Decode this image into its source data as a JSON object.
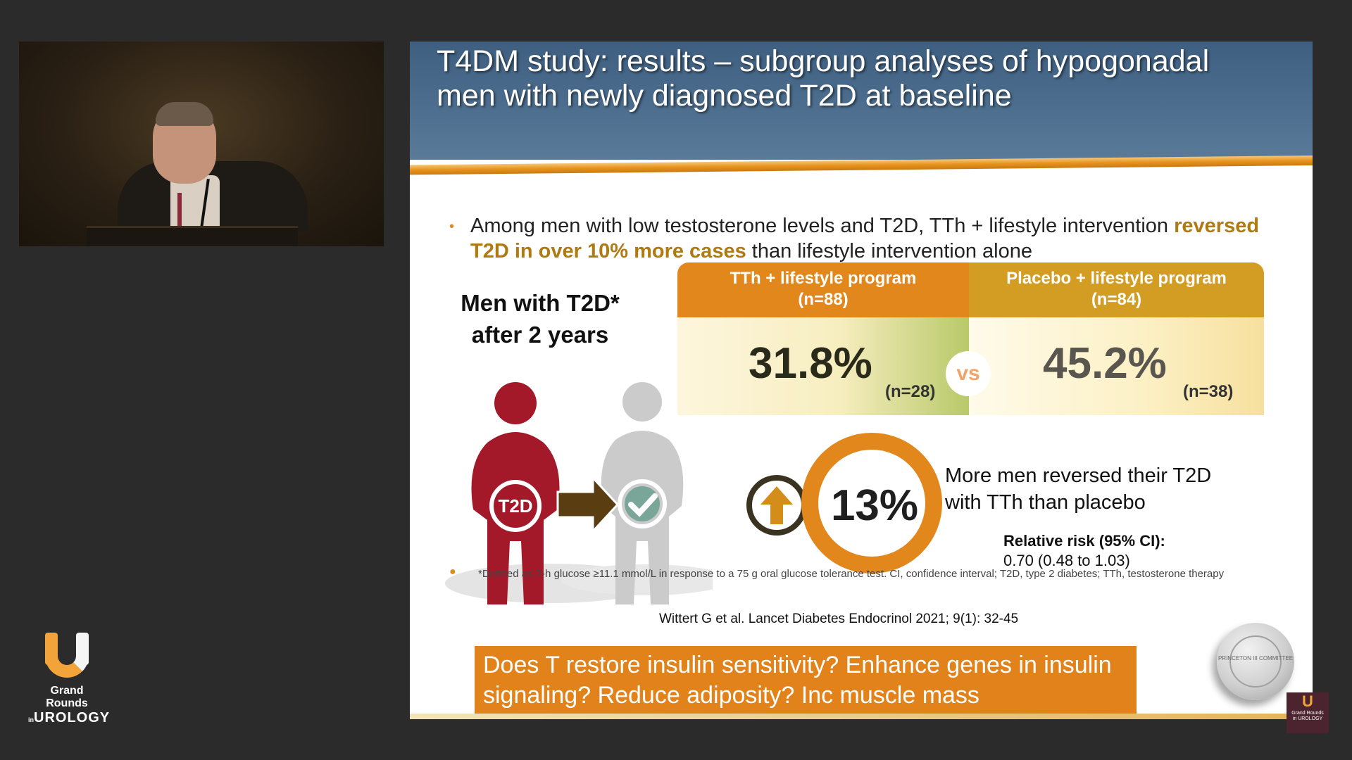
{
  "logo": {
    "line1": "Grand Rounds",
    "line2_small": "in",
    "line2": "UROLOGY",
    "mini_line1": "Grand Rounds",
    "mini_line2": "in UROLOGY"
  },
  "slide": {
    "title": "T4DM study: results – subgroup analyses of hypogonadal men with newly diagnosed T2D at baseline",
    "intro_part1": "Among men with low testosterone levels and T2D, TTh + lifestyle intervention",
    "intro_highlight": "reversed T2D in over 10% more cases",
    "intro_part2": "than lifestyle intervention alone",
    "men_title_line1": "Men with T2D*",
    "men_title_line2": "after 2 years",
    "t2d_badge": "T2D",
    "col_left_title": "TTh + lifestyle program",
    "col_left_n": "(n=88)",
    "col_left_pct": "31.8%",
    "col_left_sub": "(n=28)",
    "col_right_title": "Placebo + lifestyle program",
    "col_right_n": "(n=84)",
    "col_right_pct": "45.2%",
    "col_right_sub": "(n=38)",
    "vs": "vs",
    "big_pct": "13%",
    "more_men": "More men reversed their T2D with TTh than placebo",
    "rr_label": "Relative risk (95% CI):",
    "rr_value": "0.70 (0.48 to 1.03)",
    "footnote": "*Defined as 2-h glucose ≥11.1 mmol/L in response to a 75 g oral glucose tolerance test. CI, confidence interval; T2D, type 2 diabetes; TTh, testosterone therapy",
    "citation": "Wittert G et al. Lancet Diabetes Endocrinol 2021; 9(1): 32-45",
    "question": "Does T restore insulin sensitivity? Enhance genes in insulin signaling? Reduce adiposity? Inc muscle mass",
    "seal_text": "PRINCETON III COMMITTEE"
  },
  "colors": {
    "accent_orange": "#e2871c",
    "header_blue": "#4e6f8f",
    "t2d_red": "#a3192a",
    "gray_figure": "#c8c8c8",
    "arrow_brown": "#5a3e12"
  }
}
